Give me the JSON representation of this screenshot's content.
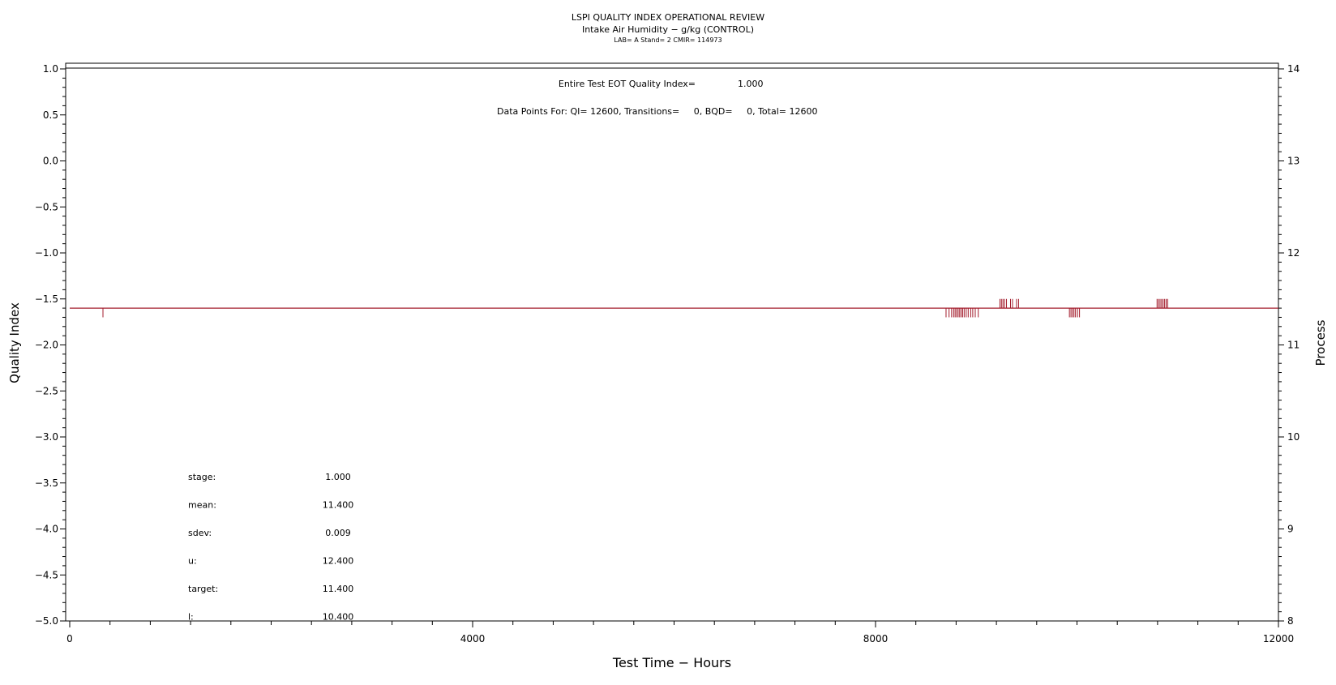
{
  "chart_data": {
    "type": "line",
    "title": "LSPI QUALITY INDEX OPERATIONAL REVIEW",
    "subtitle": "Intake Air Humidity − g/kg (CONTROL)",
    "subtitle2": "LAB= A Stand= 2 CMIR= 114973",
    "xlabel": "Test Time − Hours",
    "ylabel": "Quality Index",
    "y2label": "Process",
    "xlim": [
      0,
      12000
    ],
    "ylim": [
      -5.0,
      1.0
    ],
    "y2lim": [
      8,
      14
    ],
    "x_ticks": [
      0,
      4000,
      8000,
      12000
    ],
    "x_tick_labels": [
      "0",
      "4000",
      "8000",
      "12000"
    ],
    "y_ticks": [
      1.0,
      0.5,
      0.0,
      -0.5,
      -1.0,
      -1.5,
      -2.0,
      -2.5,
      -3.0,
      -3.5,
      -4.0,
      -4.5,
      -5.0
    ],
    "y_tick_labels": [
      "1.0",
      "0.5",
      "0.0",
      "−0.5",
      "−1.0",
      "−1.5",
      "−2.0",
      "−2.5",
      "−3.0",
      "−3.5",
      "−4.0",
      "−4.5",
      "−5.0"
    ],
    "y2_ticks": [
      14,
      13,
      12,
      11,
      10,
      9,
      8
    ],
    "y2_tick_labels": [
      "14",
      "13",
      "12",
      "11",
      "10",
      "9",
      "8"
    ],
    "annotations": {
      "eot_label": "Entire Test EOT Quality Index=",
      "eot_value": "1.000",
      "points_text": "Data Points For: QI= 12600, Transitions=     0, BQD=     0, Total= 12600"
    },
    "stats": [
      {
        "label": "stage:",
        "value": "1.000"
      },
      {
        "label": "mean:",
        "value": "11.400"
      },
      {
        "label": "sdev:",
        "value": "0.009"
      },
      {
        "label": "u:",
        "value": "12.400"
      },
      {
        "label": "target:",
        "value": "11.400"
      },
      {
        "label": "l:",
        "value": "10.400"
      }
    ],
    "series": [
      {
        "axis": "right",
        "color": "#a31c2c",
        "baseline": 11.4,
        "spikes": [
          {
            "x": 330,
            "y": 11.3
          },
          {
            "x": 8700,
            "y": 11.3
          },
          {
            "x": 8730,
            "y": 11.3
          },
          {
            "x": 8755,
            "y": 11.3
          },
          {
            "x": 8775,
            "y": 11.3
          },
          {
            "x": 8790,
            "y": 11.3
          },
          {
            "x": 8805,
            "y": 11.3
          },
          {
            "x": 8820,
            "y": 11.3
          },
          {
            "x": 8835,
            "y": 11.3
          },
          {
            "x": 8850,
            "y": 11.3
          },
          {
            "x": 8865,
            "y": 11.3
          },
          {
            "x": 8880,
            "y": 11.3
          },
          {
            "x": 8900,
            "y": 11.3
          },
          {
            "x": 8920,
            "y": 11.3
          },
          {
            "x": 8945,
            "y": 11.3
          },
          {
            "x": 8965,
            "y": 11.3
          },
          {
            "x": 8990,
            "y": 11.3
          },
          {
            "x": 9020,
            "y": 11.3
          },
          {
            "x": 9235,
            "y": 11.5
          },
          {
            "x": 9250,
            "y": 11.5
          },
          {
            "x": 9265,
            "y": 11.5
          },
          {
            "x": 9280,
            "y": 11.5
          },
          {
            "x": 9300,
            "y": 11.5
          },
          {
            "x": 9340,
            "y": 11.5
          },
          {
            "x": 9360,
            "y": 11.5
          },
          {
            "x": 9400,
            "y": 11.5
          },
          {
            "x": 9420,
            "y": 11.5
          },
          {
            "x": 9925,
            "y": 11.3
          },
          {
            "x": 9940,
            "y": 11.3
          },
          {
            "x": 9955,
            "y": 11.3
          },
          {
            "x": 9970,
            "y": 11.3
          },
          {
            "x": 9985,
            "y": 11.3
          },
          {
            "x": 10005,
            "y": 11.3
          },
          {
            "x": 10025,
            "y": 11.3
          },
          {
            "x": 10795,
            "y": 11.5
          },
          {
            "x": 10810,
            "y": 11.5
          },
          {
            "x": 10825,
            "y": 11.5
          },
          {
            "x": 10840,
            "y": 11.5
          },
          {
            "x": 10855,
            "y": 11.5
          },
          {
            "x": 10870,
            "y": 11.5
          },
          {
            "x": 10885,
            "y": 11.5
          },
          {
            "x": 10900,
            "y": 11.5
          }
        ]
      }
    ]
  }
}
